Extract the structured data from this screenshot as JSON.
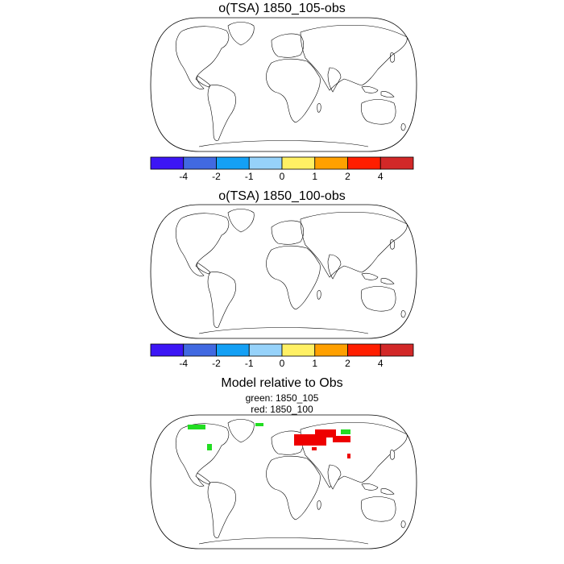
{
  "panels": [
    {
      "title": "o(TSA) 1850_105-obs"
    },
    {
      "title": "o(TSA) 1850_100-obs"
    },
    {
      "title": "Model relative to Obs",
      "legend_lines": [
        "green: 1850_105",
        "red: 1850_100"
      ]
    }
  ],
  "colorbar": {
    "colors": [
      "#3c16f5",
      "#4169e1",
      "#14a0f5",
      "#96d2fa",
      "#fff064",
      "#ffa000",
      "#ff1e00",
      "#d22828"
    ],
    "ticks": [
      "-4",
      "-2",
      "-1",
      "0",
      "1",
      "2",
      "4"
    ]
  },
  "overlay_colors": {
    "model_105": "#22dd22",
    "model_100": "#ee0000"
  }
}
